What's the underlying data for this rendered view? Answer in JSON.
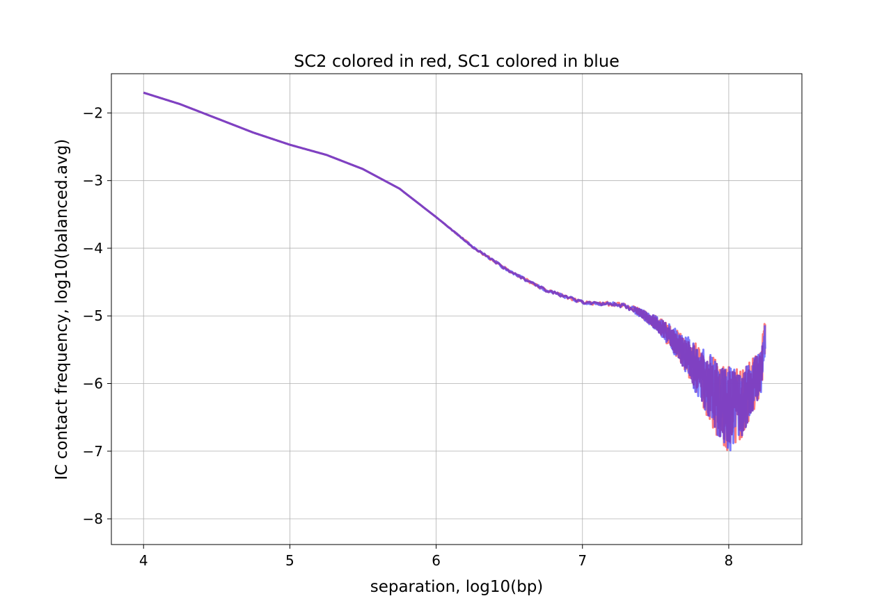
{
  "chart_data": {
    "type": "line",
    "title": "SC2 colored in red, SC1 colored in blue",
    "xlabel": "separation, log10(bp)",
    "ylabel": "IC contact frequency, log10(balanced.avg)",
    "xlim": [
      3.78,
      8.5
    ],
    "ylim": [
      -8.38,
      -1.42
    ],
    "xticks": [
      4,
      5,
      6,
      7,
      8
    ],
    "yticks": [
      -2,
      -3,
      -4,
      -5,
      -6,
      -7,
      -8
    ],
    "grid": true,
    "colors": {
      "SC2": "#ff5050",
      "SC1": "#5050ff",
      "overlap": "#8040c0"
    },
    "series": [
      {
        "key": "SC2",
        "color": "#ff5050",
        "x": [
          4.0,
          4.25,
          4.5,
          4.75,
          5.0,
          5.25,
          5.5,
          5.75,
          6.0,
          6.25,
          6.5,
          6.75,
          7.0,
          7.1,
          7.2,
          7.3,
          7.4,
          7.5,
          7.6,
          7.7,
          7.8,
          7.9,
          8.0,
          8.1,
          8.22,
          8.25
        ],
        "y": [
          -1.7,
          -1.87,
          -2.08,
          -2.29,
          -2.47,
          -2.62,
          -2.83,
          -3.12,
          -3.54,
          -3.98,
          -4.34,
          -4.62,
          -4.8,
          -4.82,
          -4.82,
          -4.86,
          -4.95,
          -5.1,
          -5.3,
          -5.55,
          -5.85,
          -6.15,
          -6.4,
          -6.3,
          -5.8,
          -5.2
        ],
        "noise": [
          0,
          0,
          0,
          0,
          0,
          0,
          0,
          0,
          0,
          0.03,
          0.05,
          0.05,
          0.05,
          0.05,
          0.06,
          0.08,
          0.12,
          0.2,
          0.35,
          0.55,
          0.8,
          1.1,
          1.3,
          1.0,
          0.7,
          0.6
        ]
      },
      {
        "key": "SC1",
        "color": "#5050ff",
        "x": [
          4.0,
          4.25,
          4.5,
          4.75,
          5.0,
          5.25,
          5.5,
          5.75,
          6.0,
          6.25,
          6.5,
          6.75,
          7.0,
          7.1,
          7.2,
          7.3,
          7.4,
          7.5,
          7.6,
          7.7,
          7.8,
          7.9,
          8.0,
          8.1,
          8.22,
          8.25
        ],
        "y": [
          -1.7,
          -1.87,
          -2.08,
          -2.29,
          -2.47,
          -2.62,
          -2.83,
          -3.12,
          -3.54,
          -3.98,
          -4.34,
          -4.62,
          -4.8,
          -4.82,
          -4.82,
          -4.86,
          -4.96,
          -5.1,
          -5.3,
          -5.55,
          -5.85,
          -6.15,
          -6.4,
          -6.3,
          -5.8,
          -5.4
        ],
        "noise": [
          0,
          0,
          0,
          0,
          0,
          0,
          0,
          0,
          0,
          0.03,
          0.05,
          0.05,
          0.05,
          0.05,
          0.06,
          0.08,
          0.12,
          0.2,
          0.35,
          0.55,
          0.8,
          1.1,
          1.3,
          1.0,
          0.7,
          0.6
        ]
      }
    ]
  }
}
